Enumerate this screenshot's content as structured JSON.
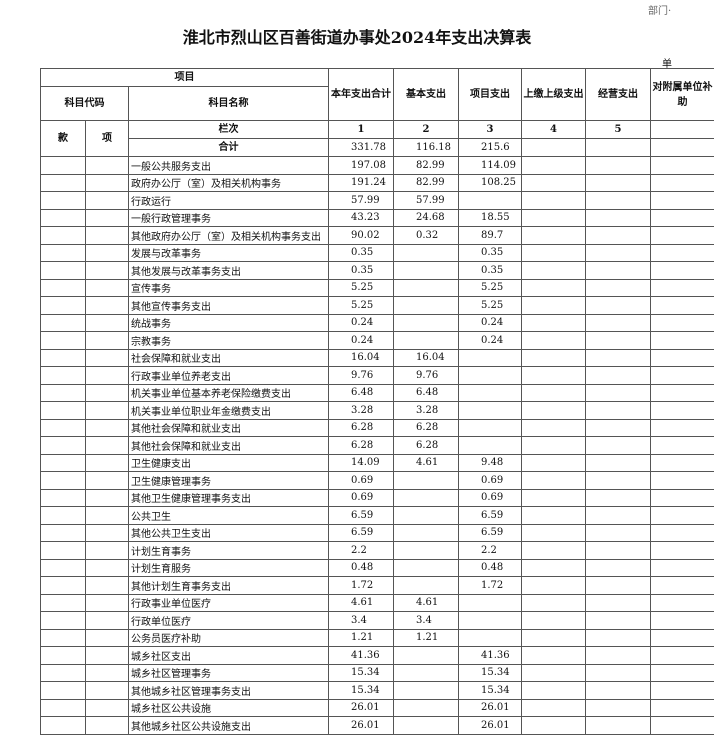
{
  "header": {
    "dept": "部门·",
    "title": "淮北市烈山区百善街道办事处2024年支出决算表",
    "unit": "单"
  },
  "table": {
    "head": {
      "item": "项目",
      "code": "科目代码",
      "name": "科目名称",
      "seq": "栏次",
      "kuan": "款",
      "xiang": "项",
      "columns": [
        "本年支出合计",
        "基本支出",
        "项目支出",
        "上缴上级支出",
        "经营支出",
        "对附属单位补助"
      ]
    },
    "col_numbers": [
      1,
      2,
      3,
      4,
      5
    ],
    "total": {
      "label": "合计",
      "values": [
        331.78,
        116.18,
        215.6
      ]
    },
    "rows": [
      [
        "一般公共服务支出",
        197.08,
        82.99,
        114.09
      ],
      [
        "政府办公厅（室）及相关机构事务",
        191.24,
        82.99,
        108.25
      ],
      [
        "行政运行",
        57.99,
        57.99,
        null
      ],
      [
        "一般行政管理事务",
        43.23,
        24.68,
        18.55
      ],
      [
        "其他政府办公厅（室）及相关机构事务支出",
        90.02,
        0.32,
        89.7
      ],
      [
        "发展与改革事务",
        0.35,
        null,
        0.35
      ],
      [
        "其他发展与改革事务支出",
        0.35,
        null,
        0.35
      ],
      [
        "宣传事务",
        5.25,
        null,
        5.25
      ],
      [
        "其他宣传事务支出",
        5.25,
        null,
        5.25
      ],
      [
        "统战事务",
        0.24,
        null,
        0.24
      ],
      [
        "宗教事务",
        0.24,
        null,
        0.24
      ],
      [
        "社会保障和就业支出",
        16.04,
        16.04,
        null
      ],
      [
        "行政事业单位养老支出",
        9.76,
        9.76,
        null
      ],
      [
        "机关事业单位基本养老保险缴费支出",
        6.48,
        6.48,
        null
      ],
      [
        "机关事业单位职业年金缴费支出",
        3.28,
        3.28,
        null
      ],
      [
        "其他社会保障和就业支出",
        6.28,
        6.28,
        null
      ],
      [
        "其他社会保障和就业支出",
        6.28,
        6.28,
        null
      ],
      [
        "卫生健康支出",
        14.09,
        4.61,
        9.48
      ],
      [
        "卫生健康管理事务",
        0.69,
        null,
        0.69
      ],
      [
        "其他卫生健康管理事务支出",
        0.69,
        null,
        0.69
      ],
      [
        "公共卫生",
        6.59,
        null,
        6.59
      ],
      [
        "其他公共卫生支出",
        6.59,
        null,
        6.59
      ],
      [
        "计划生育事务",
        2.2,
        null,
        2.2
      ],
      [
        "计划生育服务",
        0.48,
        null,
        0.48
      ],
      [
        "其他计划生育事务支出",
        1.72,
        null,
        1.72
      ],
      [
        "行政事业单位医疗",
        4.61,
        4.61,
        null
      ],
      [
        "行政单位医疗",
        3.4,
        3.4,
        null
      ],
      [
        "公务员医疗补助",
        1.21,
        1.21,
        null
      ],
      [
        "城乡社区支出",
        41.36,
        null,
        41.36
      ],
      [
        "城乡社区管理事务",
        15.34,
        null,
        15.34
      ],
      [
        "其他城乡社区管理事务支出",
        15.34,
        null,
        15.34
      ],
      [
        "城乡社区公共设施",
        26.01,
        null,
        26.01
      ],
      [
        "其他城乡社区公共设施支出",
        26.01,
        null,
        26.01
      ]
    ]
  }
}
